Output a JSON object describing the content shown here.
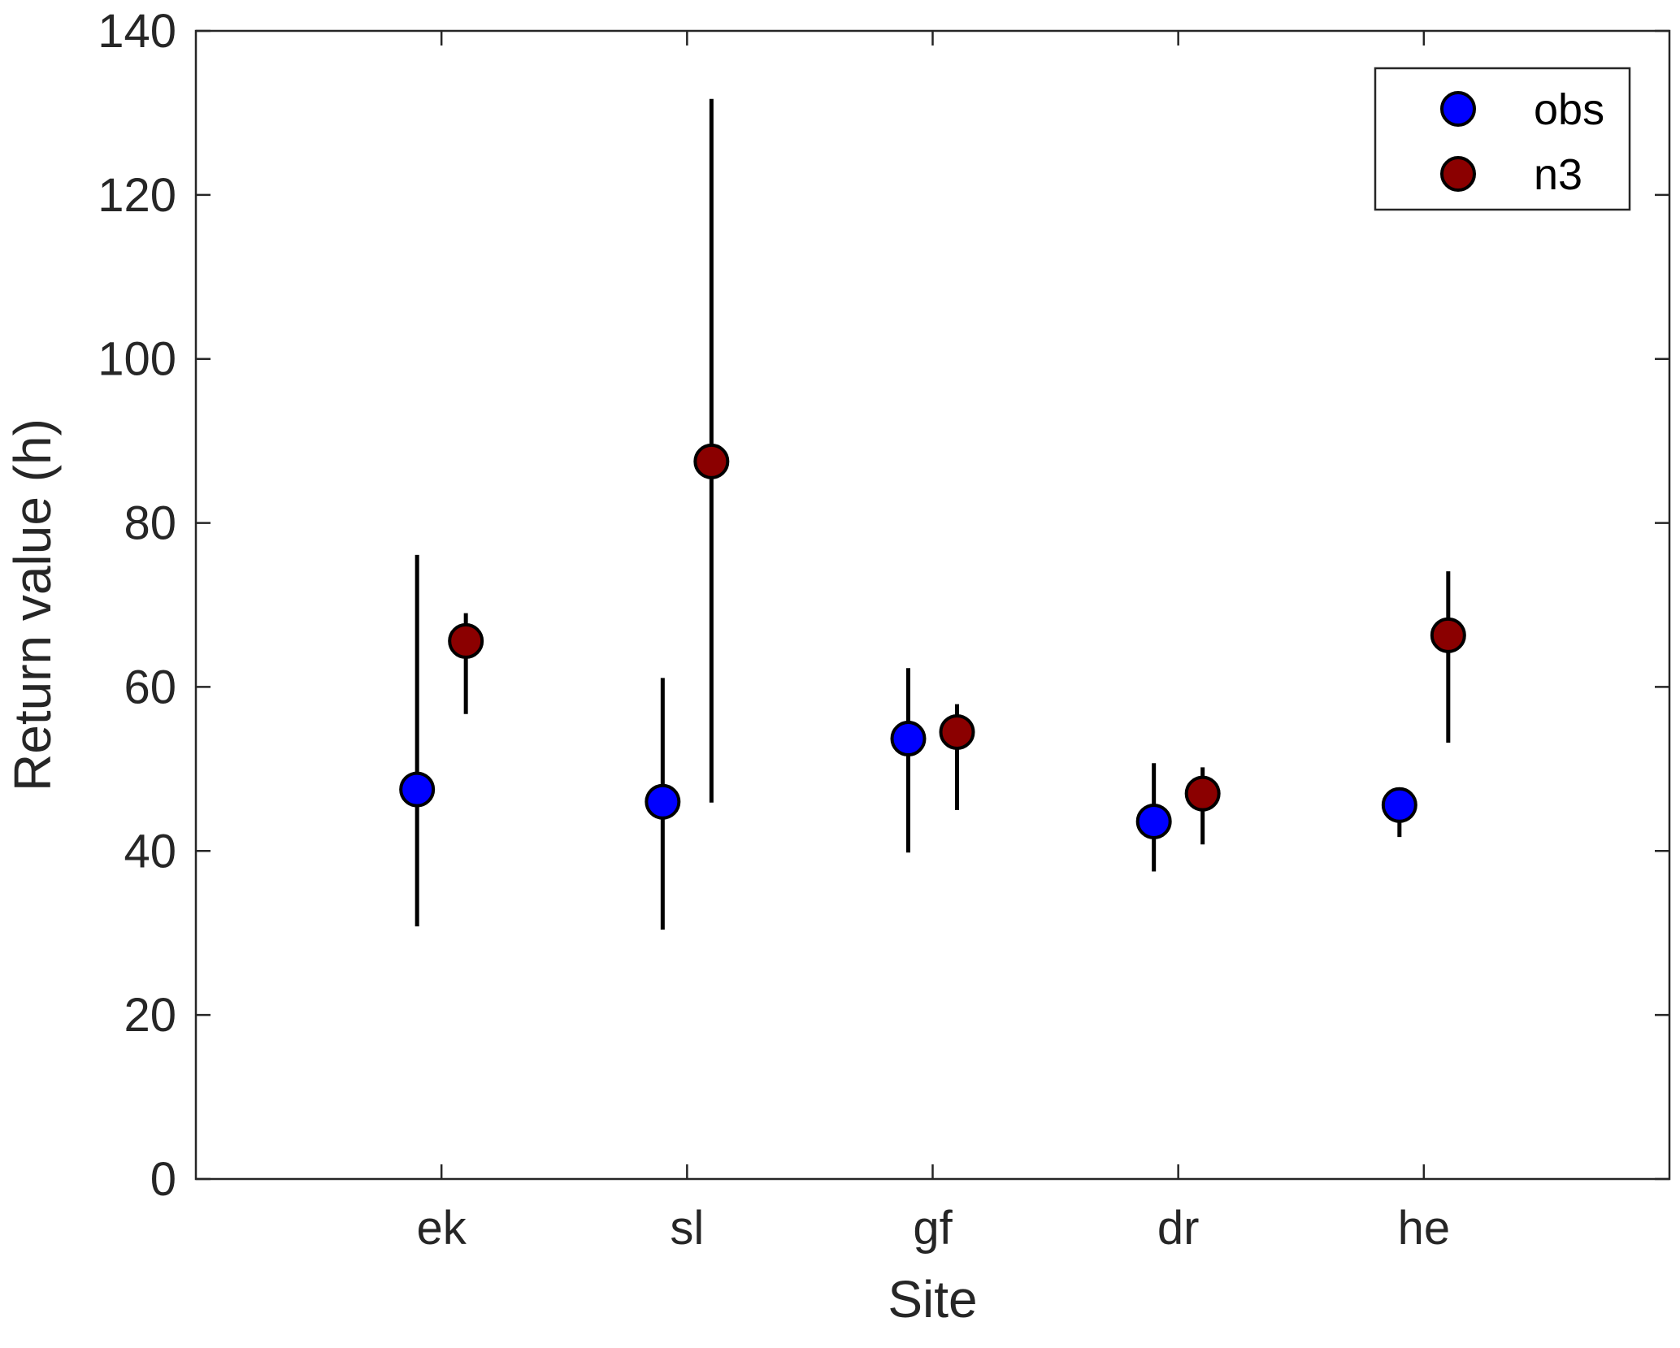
{
  "chart_data": {
    "type": "scatter",
    "xlabel": "Site",
    "ylabel": "Return value (h)",
    "ylim": [
      0,
      140
    ],
    "yticks": [
      0,
      20,
      40,
      60,
      80,
      100,
      120,
      140
    ],
    "categories": [
      "ek",
      "sl",
      "gf",
      "dr",
      "he"
    ],
    "grid": false,
    "legend_position": "top-right",
    "error_bar_color": "#000000",
    "series": [
      {
        "name": "obs",
        "color": "#0000FF",
        "values": [
          47.5,
          46.0,
          53.7,
          43.6,
          45.6
        ],
        "lower": [
          30.8,
          30.4,
          39.8,
          37.5,
          41.7
        ],
        "upper": [
          76.1,
          61.1,
          62.3,
          50.7,
          46.0
        ]
      },
      {
        "name": "n3",
        "color": "#8B0000",
        "values": [
          65.6,
          87.5,
          54.5,
          47.0,
          66.3
        ],
        "lower": [
          56.7,
          45.9,
          45.0,
          40.8,
          53.2
        ],
        "upper": [
          69.0,
          131.7,
          57.9,
          50.2,
          74.1
        ]
      }
    ]
  }
}
